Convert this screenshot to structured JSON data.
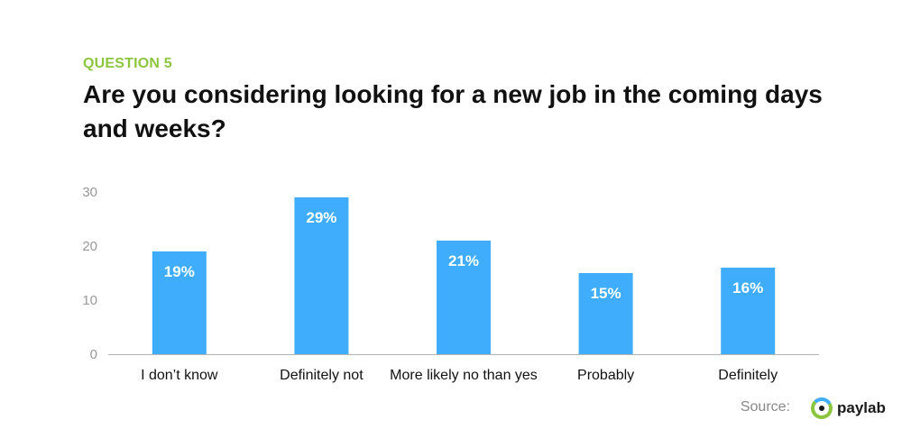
{
  "header": {
    "eyebrow": "QUESTION 5",
    "title": "Are you considering looking for a new job in the coming days and weeks?"
  },
  "footer": {
    "source_label": "Source:",
    "brand": "paylab"
  },
  "colors": {
    "bar": "#3fadfc",
    "eyebrow": "#8cc63e",
    "logo_ring_green": "#8cc63e",
    "logo_ring_blue": "#3fadfc"
  },
  "chart_data": {
    "type": "bar",
    "categories": [
      "I don’t know",
      "Definitely not",
      "More likely no than yes",
      "Probably",
      "Definitely"
    ],
    "values": [
      19,
      29,
      21,
      15,
      16
    ],
    "data_labels": [
      "19%",
      "29%",
      "21%",
      "15%",
      "16%"
    ],
    "yticks": [
      0,
      10,
      20,
      30
    ],
    "ylim": [
      0,
      30
    ],
    "grid": false,
    "legend": "none"
  }
}
